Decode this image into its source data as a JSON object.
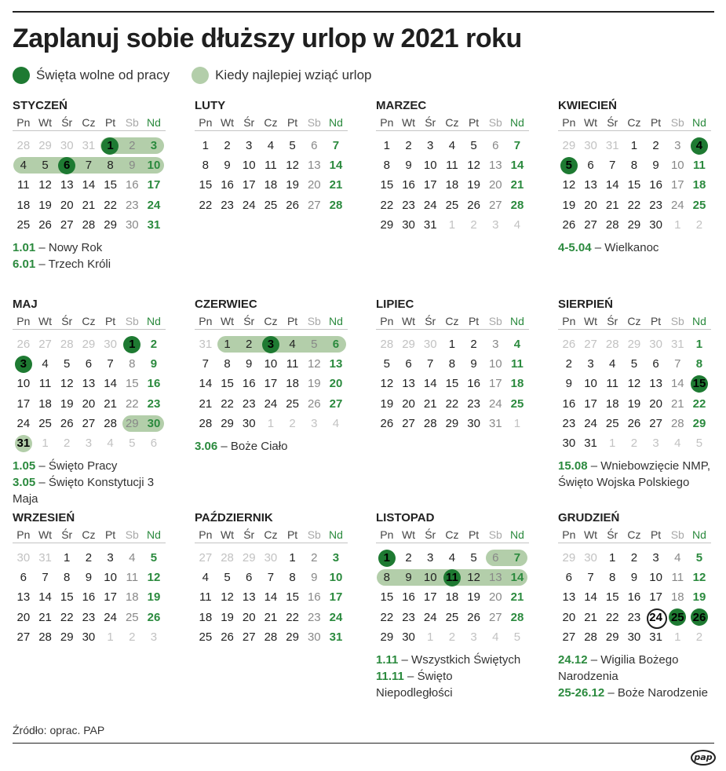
{
  "title": "Zaplanuj sobie dłuższy urlop w 2021 roku",
  "legend": {
    "holiday": "Święta wolne od pracy",
    "vacation": "Kiedy najlepiej wziąć urlop"
  },
  "colors": {
    "holiday": "#1e7a32",
    "vacation": "#b3ceaa",
    "sunday": "#2b8a3e",
    "other_month": "#c2c2c2"
  },
  "weekdays": [
    "Pn",
    "Wt",
    "Śr",
    "Cz",
    "Pt",
    "Sb",
    "Nd"
  ],
  "months": [
    {
      "name": "STYCZEŃ",
      "lead": [
        28,
        29,
        30,
        31
      ],
      "days": 31,
      "holidays": [
        1,
        6
      ],
      "vacation": [
        [
          1,
          3
        ],
        [
          4,
          10
        ]
      ],
      "notes": [
        {
          "date": "1.01",
          "text": " – Nowy Rok"
        },
        {
          "date": "6.01",
          "text": " – Trzech Króli"
        }
      ]
    },
    {
      "name": "LUTY",
      "lead": [],
      "days": 28,
      "holidays": [],
      "vacation": [],
      "notes": []
    },
    {
      "name": "MARZEC",
      "lead": [],
      "days": 31,
      "holidays": [],
      "vacation": [],
      "notes": []
    },
    {
      "name": "KWIECIEŃ",
      "lead": [
        29,
        30,
        31
      ],
      "days": 30,
      "holidays": [
        4,
        5
      ],
      "vacation": [],
      "notes": [
        {
          "date": "4-5.04",
          "text": " – Wielkanoc"
        }
      ]
    },
    {
      "name": "MAJ",
      "lead": [
        26,
        27,
        28,
        29,
        30
      ],
      "days": 31,
      "holidays": [
        1,
        3
      ],
      "vacation": [
        [
          29,
          30
        ],
        [
          31,
          31
        ]
      ],
      "notes": [
        {
          "date": "1.05",
          "text": " – Święto Pracy"
        },
        {
          "date": "3.05",
          "text": " – Święto Konstytucji 3 Maja"
        }
      ]
    },
    {
      "name": "CZERWIEC",
      "lead": [
        31
      ],
      "days": 30,
      "holidays": [
        3
      ],
      "vacation": [
        [
          1,
          6
        ]
      ],
      "notes": [
        {
          "date": "3.06",
          "text": " – Boże Ciało"
        }
      ]
    },
    {
      "name": "LIPIEC",
      "lead": [
        28,
        29,
        30
      ],
      "days": 31,
      "holidays": [],
      "vacation": [],
      "notes": []
    },
    {
      "name": "SIERPIEŃ",
      "lead": [
        26,
        27,
        28,
        29,
        30,
        31
      ],
      "days": 31,
      "holidays": [
        15
      ],
      "vacation": [],
      "notes": [
        {
          "date": "15.08",
          "text": " – Wniebowzięcie NMP, Święto Wojska Polskiego"
        }
      ]
    },
    {
      "name": "WRZESIEŃ",
      "lead": [
        30,
        31
      ],
      "days": 30,
      "holidays": [],
      "vacation": [],
      "notes": []
    },
    {
      "name": "PAŹDZIERNIK",
      "lead": [
        27,
        28,
        29,
        30
      ],
      "days": 31,
      "holidays": [],
      "vacation": [],
      "notes": []
    },
    {
      "name": "LISTOPAD",
      "lead": [],
      "days": 30,
      "holidays": [
        1,
        11
      ],
      "vacation": [
        [
          6,
          7
        ],
        [
          8,
          14
        ]
      ],
      "notes": [
        {
          "date": "1.11",
          "text": " – Wszystkich Świętych"
        },
        {
          "date": "11.11",
          "text": " – Święto Niepodległości"
        }
      ]
    },
    {
      "name": "GRUDZIEŃ",
      "lead": [
        29,
        30
      ],
      "days": 31,
      "holidays": [
        25,
        26
      ],
      "ring": [
        24
      ],
      "vacation": [],
      "notes": [
        {
          "date": "24.12",
          "text": " – Wigilia Bożego Narodzenia"
        },
        {
          "date": "25-26.12",
          "text": " – Boże Narodzenie"
        }
      ]
    }
  ],
  "source": "Źródło: oprac. PAP",
  "logo": "pap"
}
